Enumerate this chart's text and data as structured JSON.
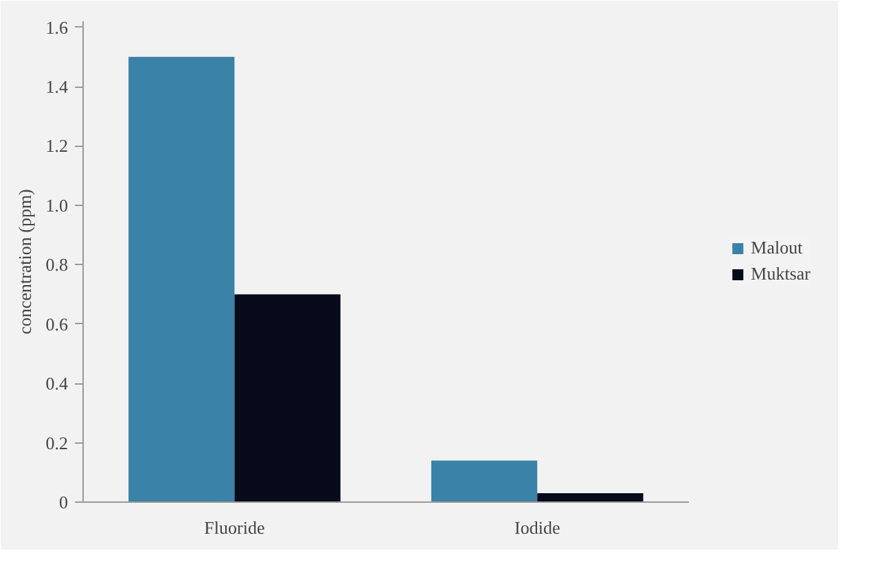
{
  "chart_data": {
    "type": "bar",
    "ylabel": "concentration (ppm)",
    "categories": [
      "Fluoride",
      "Iodide"
    ],
    "series": [
      {
        "name": "Malout",
        "color": "#3a82a8",
        "values": [
          1.5,
          0.14
        ]
      },
      {
        "name": "Muktsar",
        "color": "#060a1a",
        "values": [
          0.7,
          0.03
        ]
      }
    ],
    "ylim": [
      0,
      1.62
    ],
    "yticks": [
      0,
      0.2,
      0.4,
      0.6,
      0.8,
      {
        "value": 1.0,
        "label": "1.0"
      },
      1.2,
      1.4,
      1.6
    ],
    "grid": false,
    "legend": "right"
  }
}
